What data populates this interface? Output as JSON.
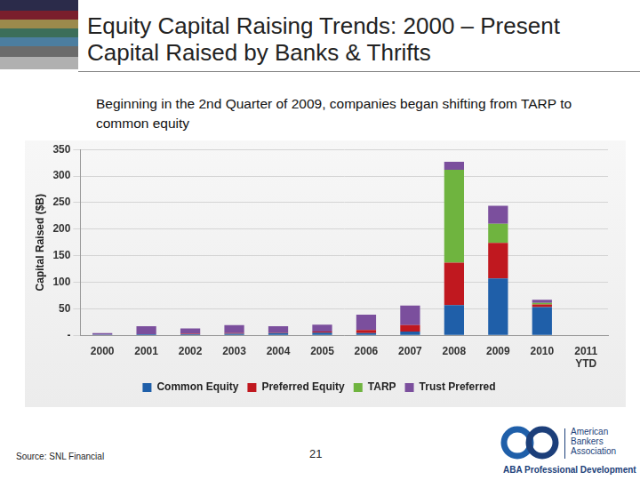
{
  "header": {
    "title": [
      "Equity Capital Raising Trends: 2000 – Present",
      "Capital Raised by Banks & Thrifts"
    ],
    "subtitle": "Beginning in the 2nd Quarter of 2009, companies began shifting from TARP to common equity"
  },
  "chart_data": {
    "type": "bar",
    "stacked": true,
    "grid": true,
    "legend": "bottom",
    "y_label": "Capital Raised ($B)",
    "categories": [
      "2000",
      "2001",
      "2002",
      "2003",
      "2004",
      "2005",
      "2006",
      "2007",
      "2008",
      "2009",
      "2010",
      "2011 YTD"
    ],
    "series": [
      {
        "name": "Common Equity",
        "color": "#1f5fa9",
        "values": [
          1,
          2,
          2,
          3,
          4,
          5,
          4,
          7,
          57,
          107,
          53,
          0
        ]
      },
      {
        "name": "Preferred Equity",
        "color": "#c0181f",
        "values": [
          0,
          0,
          1,
          1,
          1,
          2,
          6,
          12,
          80,
          67,
          5,
          0
        ]
      },
      {
        "name": "TARP",
        "color": "#6fb43f",
        "values": [
          0,
          0,
          0,
          0,
          0,
          0,
          0,
          0,
          175,
          36,
          3,
          0
        ]
      },
      {
        "name": "Trust Preferred",
        "color": "#7b4f9d",
        "values": [
          3,
          15,
          10,
          15,
          12,
          13,
          29,
          37,
          15,
          34,
          6,
          0
        ]
      }
    ],
    "ylim": [
      0,
      350
    ],
    "yticks": [
      {
        "value": 0,
        "label": "-"
      },
      50,
      100,
      150,
      200,
      250,
      300,
      350
    ]
  },
  "footer": {
    "source": "Source: SNL Financial",
    "page": "21",
    "logo": [
      "American",
      "Bankers",
      "Association"
    ],
    "logo_subtitle": "ABA Professional Development"
  }
}
